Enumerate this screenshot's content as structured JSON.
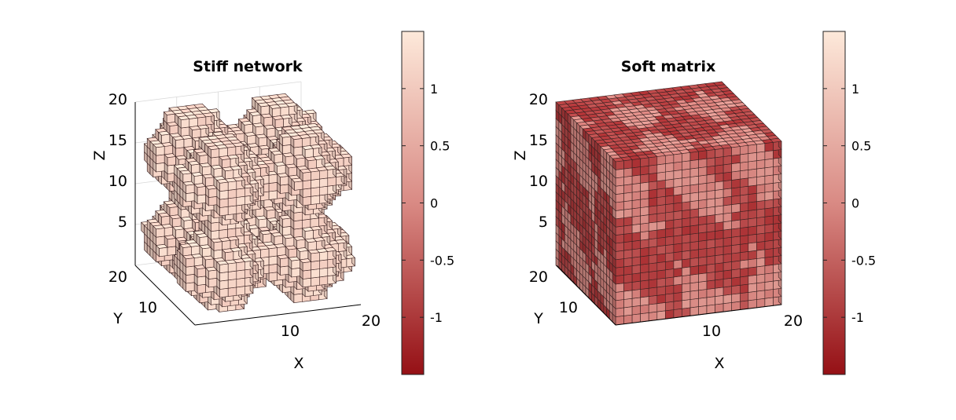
{
  "chart_data": [
    {
      "type": "voxel-3d",
      "title": "Stiff network",
      "xlabel": "X",
      "ylabel": "Y",
      "zlabel": "Z",
      "xticks": [
        "10",
        "20"
      ],
      "yticks": [
        "10",
        "20"
      ],
      "zticks": [
        "5",
        "10",
        "15",
        "20"
      ],
      "xlim": [
        0,
        20
      ],
      "ylim": [
        0,
        20
      ],
      "zlim": [
        0,
        20
      ],
      "grid_n": 20,
      "structure": "network",
      "colorbar": {
        "ticks": [
          "1",
          "0.5",
          "0",
          "-0.5",
          "-1"
        ],
        "tick_values": [
          1,
          0.5,
          0,
          -0.5,
          -1
        ],
        "range": [
          -1.5,
          1.5
        ]
      }
    },
    {
      "type": "voxel-3d",
      "title": "Soft matrix",
      "xlabel": "X",
      "ylabel": "Y",
      "zlabel": "Z",
      "xticks": [
        "10",
        "20"
      ],
      "yticks": [
        "10",
        "20"
      ],
      "zticks": [
        "5",
        "10",
        "15",
        "20"
      ],
      "xlim": [
        0,
        20
      ],
      "ylim": [
        0,
        20
      ],
      "zlim": [
        0,
        20
      ],
      "grid_n": 20,
      "structure": "matrix",
      "colorbar": {
        "ticks": [
          "1",
          "0.5",
          "0",
          "-0.5",
          "-1"
        ],
        "tick_values": [
          1,
          0.5,
          0,
          -0.5,
          -1
        ],
        "range": [
          -1.5,
          1.5
        ]
      }
    }
  ],
  "colors": {
    "colormap_high": "#fde7d7",
    "colormap_mid": "#d98a84",
    "colormap_low": "#9a1016",
    "grid_line": "#333333",
    "voxel_edge": "#3a2222"
  }
}
